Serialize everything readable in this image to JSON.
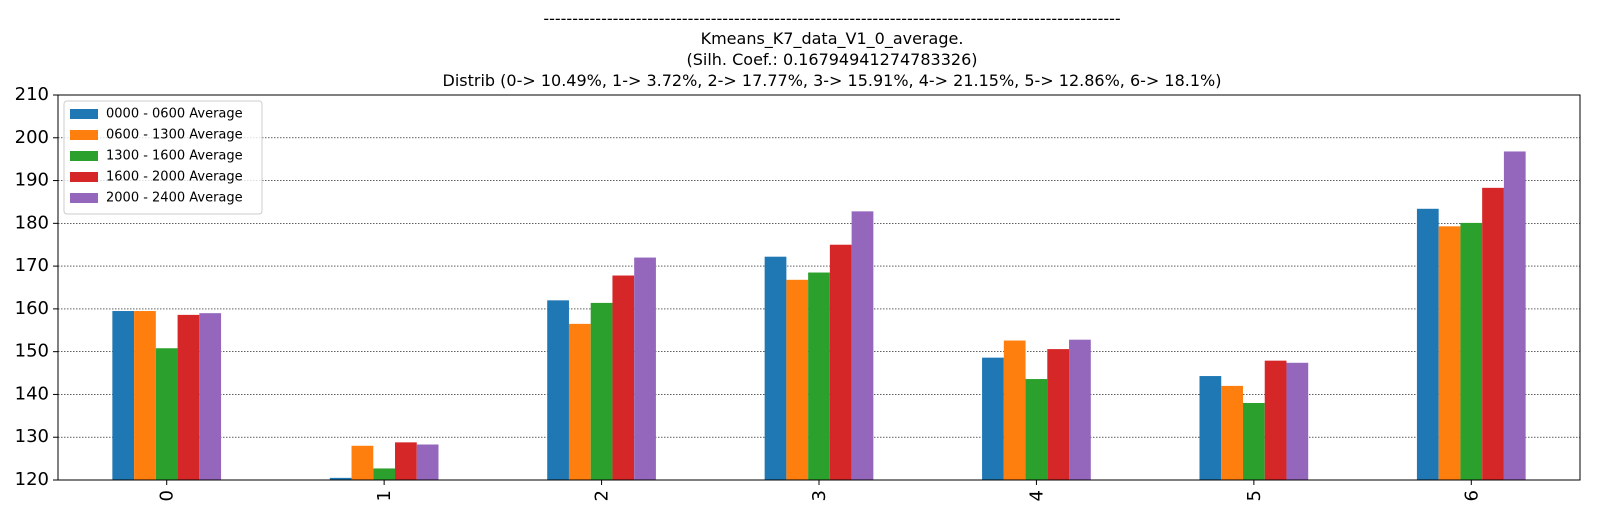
{
  "chart_data": {
    "type": "bar",
    "title_lines": [
      "----------------------------------------------------------------------------------------------------",
      "Kmeans_K7_data_V1_0_average.",
      "(Silh. Coef.: 0.16794941274783326)",
      "Distrib (0-> 10.49%, 1-> 3.72%, 2-> 17.77%, 3-> 15.91%, 4-> 21.15%, 5-> 12.86%, 6-> 18.1%)"
    ],
    "categories": [
      "0",
      "1",
      "2",
      "3",
      "4",
      "5",
      "6"
    ],
    "ylim": [
      120,
      210
    ],
    "yticks": [
      120,
      130,
      140,
      150,
      160,
      170,
      180,
      190,
      200,
      210
    ],
    "grid": "y",
    "legend_position": "top-left",
    "series": [
      {
        "name": "0000 - 0600 Average",
        "color": "#1f77b4",
        "values": [
          159.5,
          120.5,
          162.0,
          172.2,
          148.6,
          144.3,
          183.4
        ]
      },
      {
        "name": "0600 - 1300 Average",
        "color": "#ff7f0e",
        "values": [
          159.5,
          128.0,
          156.5,
          166.8,
          152.6,
          142.0,
          179.3
        ]
      },
      {
        "name": "1300 - 1600 Average",
        "color": "#2ca02c",
        "values": [
          150.8,
          122.7,
          161.4,
          168.5,
          143.6,
          138.0,
          180.1
        ]
      },
      {
        "name": "1600 - 2000 Average",
        "color": "#d62728",
        "values": [
          158.6,
          128.8,
          167.8,
          175.0,
          150.6,
          147.9,
          188.3
        ]
      },
      {
        "name": "2000 - 2400 Average",
        "color": "#9467bd",
        "values": [
          159.0,
          128.3,
          172.0,
          182.8,
          152.8,
          147.4,
          196.8
        ]
      }
    ]
  }
}
